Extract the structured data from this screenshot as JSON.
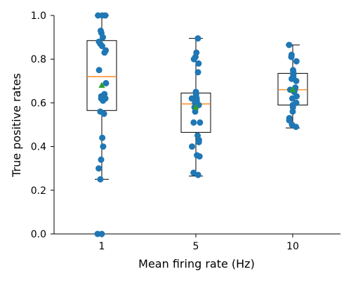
{
  "chart_data": {
    "type": "box",
    "xlabel": "Mean firing rate (Hz)",
    "ylabel": "True positive rates",
    "categories": [
      "1",
      "5",
      "10"
    ],
    "ylim": [
      0.0,
      1.0
    ],
    "yticks": [
      "0.0",
      "0.2",
      "0.4",
      "0.6",
      "0.8",
      "1.0"
    ],
    "grid": false,
    "colors": {
      "points": "#1f77b4",
      "median": "#ff7f0e",
      "mean": "#2ca02c",
      "box": "#000000"
    },
    "boxes": [
      {
        "category": "1",
        "whisker_low": 0.25,
        "q1": 0.565,
        "median": 0.72,
        "q3": 0.885,
        "whisker_high": 1.0,
        "mean": 0.68
      },
      {
        "category": "5",
        "whisker_low": 0.265,
        "q1": 0.465,
        "median": 0.595,
        "q3": 0.645,
        "whisker_high": 0.895,
        "mean": 0.58
      },
      {
        "category": "10",
        "whisker_low": 0.485,
        "q1": 0.59,
        "median": 0.66,
        "q3": 0.735,
        "whisker_high": 0.865,
        "mean": 0.66
      }
    ],
    "points": [
      {
        "category": "1",
        "values": [
          1.0,
          1.0,
          1.0,
          0.93,
          0.92,
          0.9,
          0.88,
          0.87,
          0.86,
          0.84,
          0.83,
          0.75,
          0.69,
          0.64,
          0.63,
          0.62,
          0.62,
          0.61,
          0.56,
          0.55,
          0.44,
          0.4,
          0.34,
          0.3,
          0.25,
          0.0,
          0.0
        ]
      },
      {
        "category": "5",
        "values": [
          0.895,
          0.83,
          0.81,
          0.8,
          0.78,
          0.74,
          0.65,
          0.64,
          0.63,
          0.62,
          0.62,
          0.61,
          0.6,
          0.59,
          0.58,
          0.56,
          0.51,
          0.51,
          0.45,
          0.43,
          0.42,
          0.4,
          0.36,
          0.355,
          0.28,
          0.27
        ]
      },
      {
        "category": "10",
        "values": [
          0.865,
          0.82,
          0.81,
          0.79,
          0.75,
          0.74,
          0.73,
          0.73,
          0.72,
          0.71,
          0.7,
          0.67,
          0.66,
          0.66,
          0.65,
          0.63,
          0.62,
          0.6,
          0.59,
          0.58,
          0.56,
          0.53,
          0.52,
          0.5,
          0.49
        ]
      }
    ]
  }
}
